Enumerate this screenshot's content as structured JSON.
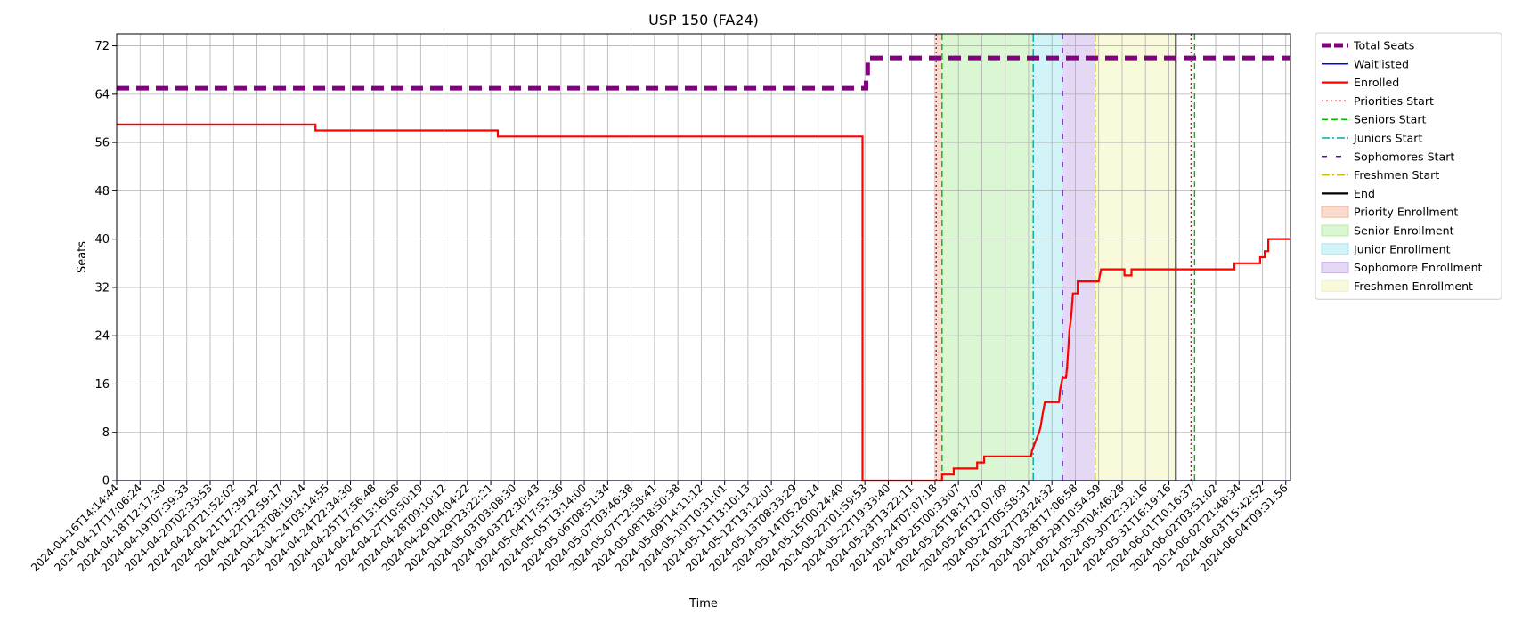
{
  "chart_data": {
    "type": "line",
    "title": "USP 150 (FA24)",
    "xlabel": "Time",
    "ylabel": "Seats",
    "ylim": [
      0,
      74
    ],
    "yticks": [
      0,
      8,
      16,
      24,
      32,
      40,
      48,
      56,
      64,
      72
    ],
    "grid": true,
    "legend_position": "outside-top-right",
    "x_tick_labels": [
      "2024-04-16T14:14:44",
      "2024-04-17T17:06:24",
      "2024-04-18T12:17:30",
      "2024-04-19T07:39:33",
      "2024-04-20T02:33:53",
      "2024-04-20T21:52:02",
      "2024-04-21T17:39:42",
      "2024-04-22T12:59:17",
      "2024-04-23T08:19:14",
      "2024-04-24T03:14:55",
      "2024-04-24T22:34:30",
      "2024-04-25T17:56:48",
      "2024-04-26T13:16:58",
      "2024-04-27T10:50:19",
      "2024-04-28T09:10:12",
      "2024-04-29T04:04:22",
      "2024-04-29T23:22:21",
      "2024-05-03T03:08:30",
      "2024-05-03T22:30:43",
      "2024-05-04T17:53:36",
      "2024-05-05T13:14:00",
      "2024-05-06T08:51:34",
      "2024-05-07T03:46:38",
      "2024-05-07T22:58:41",
      "2024-05-08T18:50:38",
      "2024-05-09T14:11:12",
      "2024-05-10T10:31:01",
      "2024-05-11T13:10:13",
      "2024-05-12T13:12:01",
      "2024-05-13T08:33:29",
      "2024-05-14T05:26:14",
      "2024-05-15T00:24:40",
      "2024-05-22T01:59:53",
      "2024-05-22T19:33:40",
      "2024-05-23T13:22:11",
      "2024-05-24T07:07:18",
      "2024-05-25T00:33:07",
      "2024-05-25T18:17:07",
      "2024-05-26T12:07:09",
      "2024-05-27T05:58:31",
      "2024-05-27T23:24:32",
      "2024-05-28T17:06:58",
      "2024-05-29T10:54:59",
      "2024-05-30T04:46:28",
      "2024-05-30T22:32:16",
      "2024-05-31T16:19:16",
      "2024-06-01T10:16:37",
      "2024-06-02T03:51:02",
      "2024-06-02T21:48:34",
      "2024-06-03T15:42:52",
      "2024-06-04T09:31:56"
    ],
    "x_max_index": 50.2,
    "series": [
      {
        "name": "Total Seats",
        "color": "#800080",
        "style": "dashed-thick",
        "points": [
          [
            0,
            65
          ],
          [
            32.05,
            65
          ],
          [
            32.05,
            67
          ],
          [
            32.12,
            67
          ],
          [
            32.12,
            70
          ],
          [
            50.2,
            70
          ]
        ]
      },
      {
        "name": "Waitlisted",
        "color": "#0000ff",
        "style": "solid-thin",
        "points": [
          [
            0,
            0
          ],
          [
            50.2,
            0
          ]
        ]
      },
      {
        "name": "Enrolled",
        "color": "#ff0000",
        "style": "solid",
        "points": [
          [
            0,
            59
          ],
          [
            8.5,
            59
          ],
          [
            8.5,
            58
          ],
          [
            16.3,
            58
          ],
          [
            16.3,
            57
          ],
          [
            31.9,
            57
          ],
          [
            31.9,
            0
          ],
          [
            35.3,
            0
          ],
          [
            35.3,
            1
          ],
          [
            35.8,
            1
          ],
          [
            35.8,
            2
          ],
          [
            36.8,
            2
          ],
          [
            36.8,
            3
          ],
          [
            37.1,
            3
          ],
          [
            37.1,
            4
          ],
          [
            39.1,
            4
          ],
          [
            39.15,
            5
          ],
          [
            39.25,
            6
          ],
          [
            39.35,
            7
          ],
          [
            39.45,
            8
          ],
          [
            39.52,
            9
          ],
          [
            39.6,
            11
          ],
          [
            39.7,
            13
          ],
          [
            40.3,
            13
          ],
          [
            40.35,
            15
          ],
          [
            40.45,
            17
          ],
          [
            40.6,
            17
          ],
          [
            40.65,
            19
          ],
          [
            40.7,
            22
          ],
          [
            40.75,
            25
          ],
          [
            40.82,
            27
          ],
          [
            40.9,
            31
          ],
          [
            41.1,
            31
          ],
          [
            41.1,
            33
          ],
          [
            41.6,
            33
          ],
          [
            41.7,
            33
          ],
          [
            42.0,
            33
          ],
          [
            42.1,
            35
          ],
          [
            43.1,
            35
          ],
          [
            43.1,
            34
          ],
          [
            43.4,
            34
          ],
          [
            43.4,
            35
          ],
          [
            47.8,
            35
          ],
          [
            47.8,
            36
          ],
          [
            48.9,
            36
          ],
          [
            48.9,
            37
          ],
          [
            49.1,
            37
          ],
          [
            49.1,
            38
          ],
          [
            49.25,
            38
          ],
          [
            49.25,
            40
          ],
          [
            50.2,
            40
          ]
        ]
      }
    ],
    "vertical_lines": [
      {
        "name": "Priorities Start",
        "x": 35.05,
        "color": "#ff0000",
        "style": "dotted"
      },
      {
        "name": "Seniors Start",
        "x": 35.3,
        "color": "#00bb00",
        "style": "dashed"
      },
      {
        "name": "Juniors Start",
        "x": 39.2,
        "color": "#00aaaa",
        "style": "dashdot"
      },
      {
        "name": "Sophomores Start",
        "x": 40.45,
        "color": "#6600cc",
        "style": "loosedash"
      },
      {
        "name": "Freshmen Start",
        "x": 41.85,
        "color": "#ccbb00",
        "style": "dashdot"
      },
      {
        "name": "End",
        "x": 45.3,
        "color": "#000000",
        "style": "solid"
      },
      {
        "name": "",
        "x": 45.95,
        "color": "#ff0000",
        "style": "dotted"
      },
      {
        "name": "",
        "x": 46.1,
        "color": "#00bb00",
        "style": "dashed"
      }
    ],
    "shaded_regions": [
      {
        "name": "Priority Enrollment",
        "x0": 35.05,
        "x1": 35.3,
        "color": "#f4b9a0"
      },
      {
        "name": "Senior Enrollment",
        "x0": 35.3,
        "x1": 39.2,
        "color": "#b5eea5"
      },
      {
        "name": "Junior Enrollment",
        "x0": 39.2,
        "x1": 40.45,
        "color": "#a5e8ef"
      },
      {
        "name": "Sophomore Enrollment",
        "x0": 40.45,
        "x1": 41.85,
        "color": "#c9b2ec"
      },
      {
        "name": "Freshmen Enrollment",
        "x0": 41.85,
        "x1": 45.3,
        "color": "#f3f3b8"
      }
    ],
    "legend": [
      {
        "label": "Total Seats",
        "kind": "line",
        "color": "#800080",
        "style": "dashed-thick"
      },
      {
        "label": "Waitlisted",
        "kind": "line",
        "color": "#0000ff",
        "style": "solid-thin"
      },
      {
        "label": "Enrolled",
        "kind": "line",
        "color": "#ff0000",
        "style": "solid"
      },
      {
        "label": "Priorities Start",
        "kind": "line",
        "color": "#ff0000",
        "style": "dotted"
      },
      {
        "label": "Seniors Start",
        "kind": "line",
        "color": "#00bb00",
        "style": "dashed"
      },
      {
        "label": "Juniors Start",
        "kind": "line",
        "color": "#00aaaa",
        "style": "dashdot"
      },
      {
        "label": "Sophomores Start",
        "kind": "line",
        "color": "#6600cc",
        "style": "loosedash"
      },
      {
        "label": "Freshmen Start",
        "kind": "line",
        "color": "#ccbb00",
        "style": "dashdot"
      },
      {
        "label": "End",
        "kind": "line",
        "color": "#000000",
        "style": "solid"
      },
      {
        "label": "Priority Enrollment",
        "kind": "patch",
        "color": "#f4b9a0"
      },
      {
        "label": "Senior Enrollment",
        "kind": "patch",
        "color": "#b5eea5"
      },
      {
        "label": "Junior Enrollment",
        "kind": "patch",
        "color": "#a5e8ef"
      },
      {
        "label": "Sophomore Enrollment",
        "kind": "patch",
        "color": "#c9b2ec"
      },
      {
        "label": "Freshmen Enrollment",
        "kind": "patch",
        "color": "#f3f3b8"
      }
    ]
  }
}
